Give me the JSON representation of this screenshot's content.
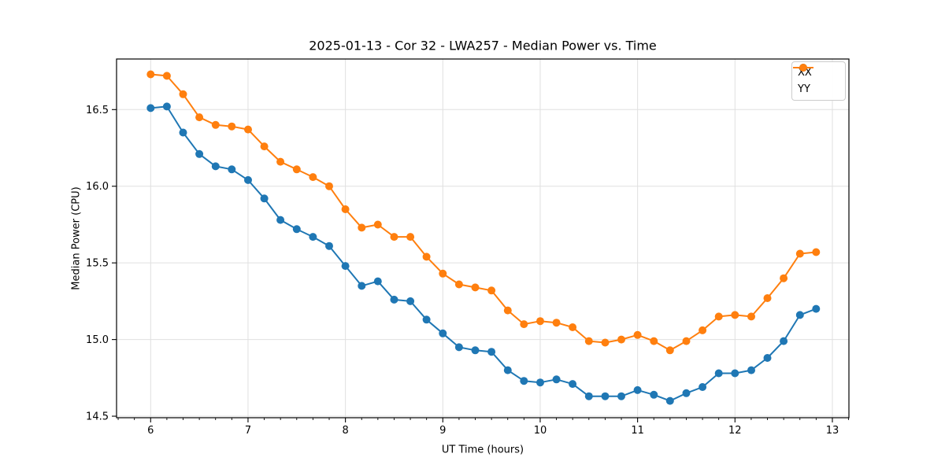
{
  "chart_data": {
    "type": "line",
    "title": "2025-01-13 - Cor 32 - LWA257 - Median Power vs. Time",
    "xlabel": "UT Time (hours)",
    "ylabel": "Median Power (CPU)",
    "xlim": [
      5.65,
      13.17
    ],
    "ylim": [
      14.49,
      16.83
    ],
    "xticks": [
      6,
      7,
      8,
      9,
      10,
      11,
      12,
      13
    ],
    "xtick_labels": [
      "6",
      "7",
      "8",
      "9",
      "10",
      "11",
      "12",
      "13"
    ],
    "yticks": [
      14.5,
      15.0,
      15.5,
      16.0,
      16.5
    ],
    "ytick_labels": [
      "14.5",
      "15.0",
      "15.5",
      "16.0",
      "16.5"
    ],
    "minor_xtick_step_hours": 0.1667,
    "grid": true,
    "legend_position": "upper right",
    "x": [
      6.0,
      6.167,
      6.333,
      6.5,
      6.667,
      6.833,
      7.0,
      7.167,
      7.333,
      7.5,
      7.667,
      7.833,
      8.0,
      8.167,
      8.333,
      8.5,
      8.667,
      8.833,
      9.0,
      9.167,
      9.333,
      9.5,
      9.667,
      9.833,
      10.0,
      10.167,
      10.333,
      10.5,
      10.667,
      10.833,
      11.0,
      11.167,
      11.333,
      11.5,
      11.667,
      11.833,
      12.0,
      12.167,
      12.333,
      12.5,
      12.667,
      12.833
    ],
    "series": [
      {
        "name": "XX",
        "color": "#1f77b4",
        "values": [
          16.51,
          16.52,
          16.35,
          16.21,
          16.13,
          16.11,
          16.04,
          15.92,
          15.78,
          15.72,
          15.67,
          15.61,
          15.48,
          15.35,
          15.38,
          15.26,
          15.25,
          15.13,
          15.04,
          14.95,
          14.93,
          14.92,
          14.8,
          14.73,
          14.72,
          14.74,
          14.71,
          14.63,
          14.63,
          14.63,
          14.67,
          14.64,
          14.6,
          14.65,
          14.69,
          14.78,
          14.78,
          14.8,
          14.88,
          14.99,
          15.16,
          15.2
        ]
      },
      {
        "name": "YY",
        "color": "#ff7f0e",
        "values": [
          16.73,
          16.72,
          16.6,
          16.45,
          16.4,
          16.39,
          16.37,
          16.26,
          16.16,
          16.11,
          16.06,
          16.0,
          15.85,
          15.73,
          15.75,
          15.67,
          15.67,
          15.54,
          15.43,
          15.36,
          15.34,
          15.32,
          15.19,
          15.1,
          15.12,
          15.11,
          15.08,
          14.99,
          14.98,
          15.0,
          15.03,
          14.99,
          14.93,
          14.99,
          15.06,
          15.15,
          15.16,
          15.15,
          15.27,
          15.4,
          15.56,
          15.57
        ]
      }
    ],
    "grid_color": "#e0e0e0",
    "spine_color": "#000000"
  }
}
